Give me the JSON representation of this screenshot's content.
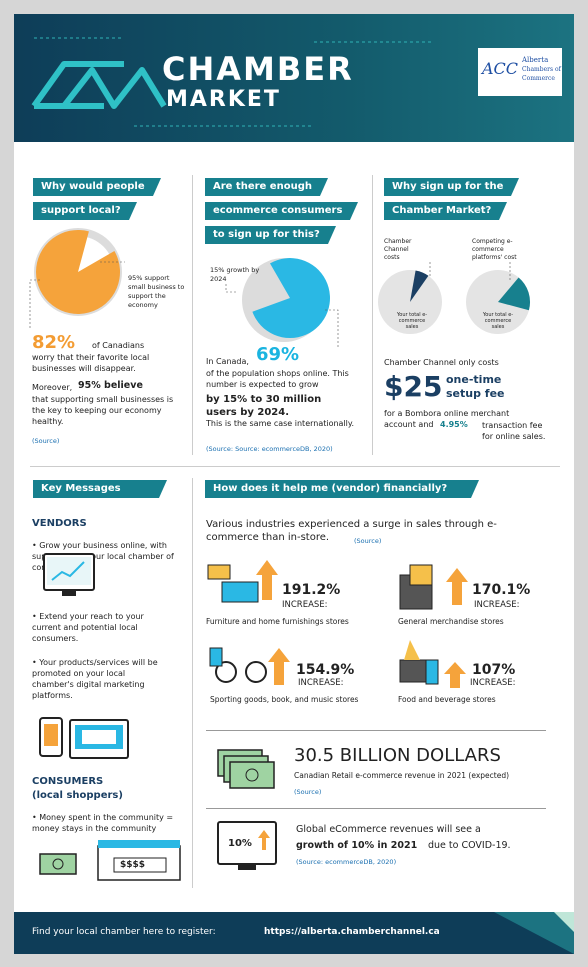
{
  "header": {
    "title_top": "CHAMBER",
    "title_bottom": "MARKET",
    "logo_mark": "ACC",
    "logo_text": [
      "Alberta",
      "Chambers of",
      "Commerce"
    ]
  },
  "support_local": {
    "heading": [
      "Why would people",
      "support local?"
    ],
    "pie_note": "95% support small business to support the economy",
    "stat": "82%",
    "stat_text": "of Canadians",
    "body": "worry that their favorite local businesses will disappear.",
    "moreover": "Moreover,",
    "highlight": "95% believe",
    "body2": "that supporting small businesses is the key to keeping our economy healthy.",
    "source": "(Source)"
  },
  "consumers_online": {
    "heading": [
      "Are there enough",
      "ecommerce consumers",
      "to sign up for this?"
    ],
    "pie_note": "15% growth by 2024",
    "lead": "In Canada,",
    "stat": "69%",
    "body": "of the population shops online. This number is expected to grow",
    "highlight": "by 15% to 30 million users by 2024.",
    "tail": "This is the same case internationally.",
    "source": "(Source: Source: ecommerceDB, 2020)"
  },
  "why_sign_up": {
    "heading": [
      "Why sign up for the",
      "Chamber Market?"
    ],
    "pie1_label": "Chamber Channel costs",
    "pie2_label": "Competing e-commerce platforms' cost",
    "pie1_inner": "Your total e-commerce sales",
    "pie2_inner": "Your total e-commerce sales",
    "lead": "Chamber Channel only costs",
    "price": "$25",
    "price_label": "one-time setup fee",
    "body": "for a Bombora online merchant account and",
    "rate": "4.95%",
    "tail": "transaction fee for online sales."
  },
  "key_messages": {
    "heading": "Key Messages",
    "vendors_title": "VENDORS",
    "vendors": [
      "• Grow your business online, with support from your local chamber of commerce",
      "• Extend your reach to your current and potential local consumers.",
      "• Your products/services will be promoted on your local chamber's digital marketing platforms."
    ],
    "consumers_title": [
      "CONSUMERS",
      "(local shoppers)"
    ],
    "consumers": [
      "• Money spent in the community = money stays in the community"
    ],
    "sign": "$$$$"
  },
  "financial": {
    "heading": "How does it help me (vendor) financially?",
    "intro": "Various industries experienced a surge in sales through e-commerce than in-store.",
    "intro_source": "(Source)",
    "industries": [
      {
        "percent": "191.2%",
        "label": "INCREASE:",
        "name": "Furniture and home furnishings stores"
      },
      {
        "percent": "170.1%",
        "label": "INCREASE:",
        "name": "General merchandise stores"
      },
      {
        "percent": "154.9%",
        "label": "INCREASE:",
        "name": "Sporting goods, book, and music stores"
      },
      {
        "percent": "107%",
        "label": "INCREASE:",
        "name": "Food and beverage stores"
      }
    ],
    "revenue": {
      "title": "30.5 BILLION DOLLARS",
      "text": "Canadian Retail e-commerce revenue in 2021 (expected)",
      "source": "(Source)"
    },
    "growth": {
      "badge": "10%",
      "lead": "Global eCommerce revenues will see a",
      "highlight": "growth of 10% in 2021",
      "tail": "due to COVID-19.",
      "source": "(Source: ecommerceDB, 2020)"
    }
  },
  "footer": {
    "text": "Find your local chamber here to register:",
    "url": "https://alberta.chamberchannel.ca"
  }
}
